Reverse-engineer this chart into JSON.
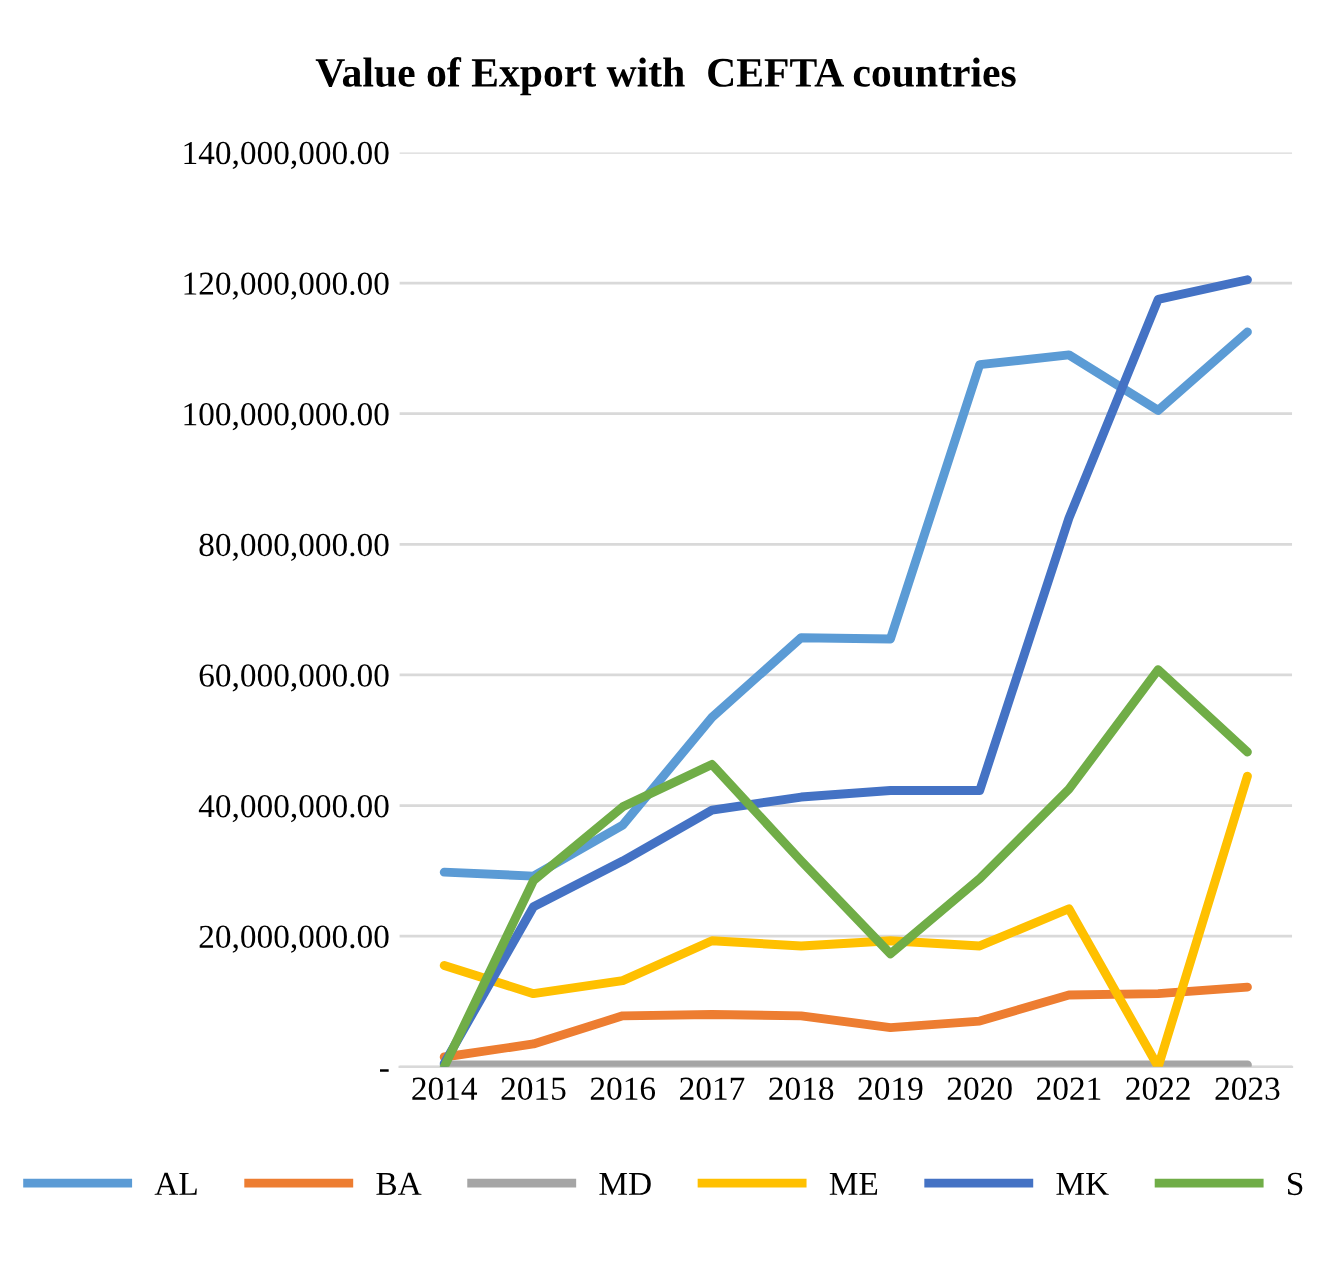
{
  "chart_data": {
    "type": "line",
    "title": "Value of Export with  CEFTA countries",
    "categories": [
      "2014",
      "2015",
      "2016",
      "2017",
      "2018",
      "2019",
      "2020",
      "2021",
      "2022",
      "2023"
    ],
    "series": [
      {
        "name": "AL",
        "color": "#5b9bd5",
        "values": [
          29800000,
          29200000,
          37000000,
          53500000,
          65700000,
          65500000,
          107500000,
          109000000,
          100500000,
          112500000
        ]
      },
      {
        "name": "BA",
        "color": "#ed7d31",
        "values": [
          1500000,
          3500000,
          7800000,
          8000000,
          7800000,
          6000000,
          7000000,
          11000000,
          11200000,
          12200000
        ]
      },
      {
        "name": "MD",
        "color": "#a5a5a5",
        "values": [
          300000,
          300000,
          300000,
          300000,
          300000,
          300000,
          300000,
          300000,
          300000,
          300000
        ]
      },
      {
        "name": "ME",
        "color": "#ffc000",
        "values": [
          15500000,
          11200000,
          13200000,
          19300000,
          18500000,
          19300000,
          18500000,
          24200000,
          0,
          44500000
        ]
      },
      {
        "name": "MK",
        "color": "#4472c4",
        "values": [
          500000,
          24500000,
          31500000,
          39300000,
          41300000,
          42300000,
          42300000,
          84000000,
          117500000,
          120500000
        ]
      },
      {
        "name": "S",
        "color": "#70ad47",
        "values": [
          0,
          28500000,
          39800000,
          46300000,
          31500000,
          17300000,
          28800000,
          42500000,
          60800000,
          48200000
        ]
      }
    ],
    "ylim": [
      0,
      140000000
    ],
    "yticks": [
      {
        "value": 0,
        "label": "-"
      },
      {
        "value": 20000000,
        "label": "20,000,000.00"
      },
      {
        "value": 40000000,
        "label": "40,000,000.00"
      },
      {
        "value": 60000000,
        "label": "60,000,000.00"
      },
      {
        "value": 80000000,
        "label": "80,000,000.00"
      },
      {
        "value": 100000000,
        "label": "100,000,000.00"
      },
      {
        "value": 120000000,
        "label": "120,000,000.00"
      },
      {
        "value": 140000000,
        "label": "140,000,000.00"
      }
    ],
    "grid": "y",
    "legend": "bottom",
    "marker": "none",
    "line_style": "solid"
  }
}
